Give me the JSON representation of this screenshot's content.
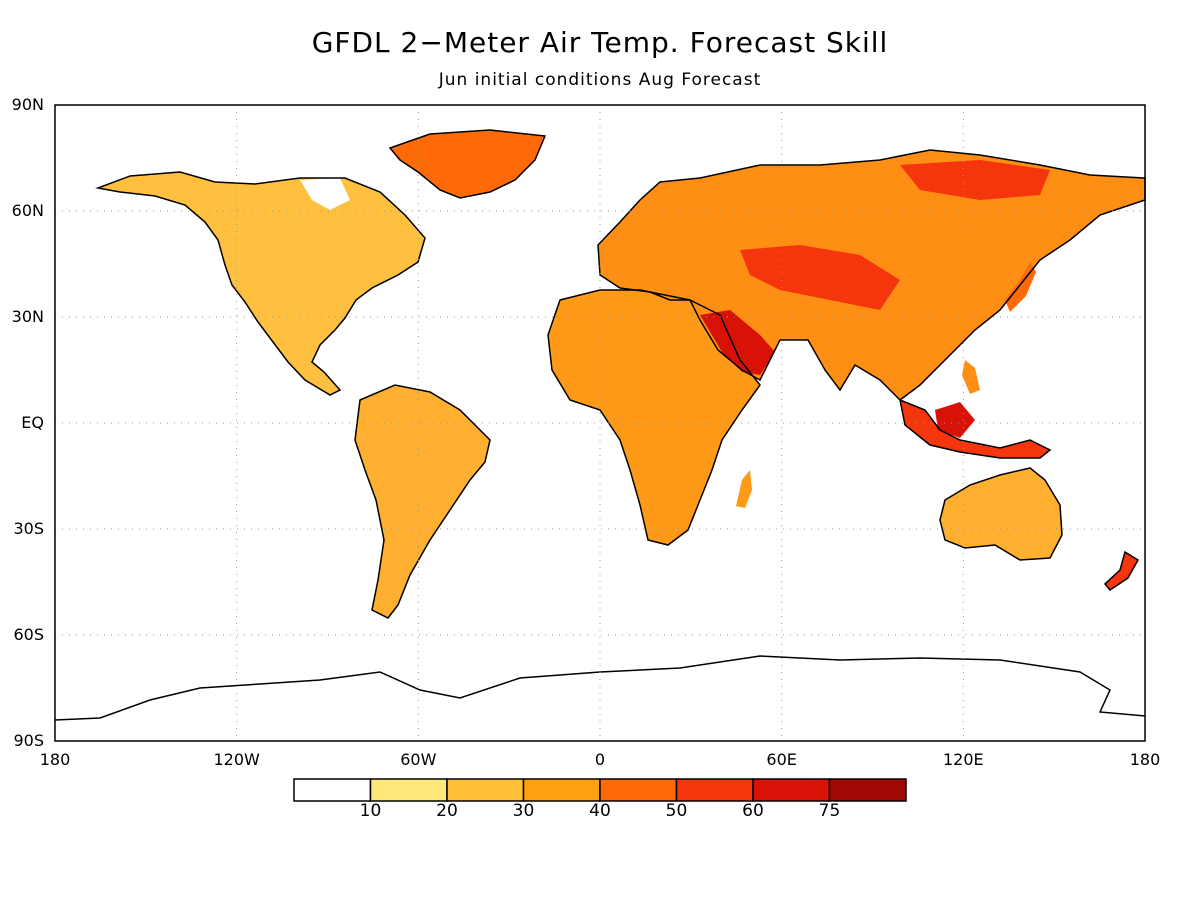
{
  "title": "GFDL 2−Meter Air Temp. Forecast Skill",
  "subtitle": "Jun initial conditions   Aug Forecast",
  "lat_labels": [
    "90N",
    "60N",
    "30N",
    "EQ",
    "30S",
    "60S",
    "90S"
  ],
  "lon_labels": [
    "180",
    "120W",
    "60W",
    "0",
    "60E",
    "120E",
    "180"
  ],
  "legend": {
    "colors": [
      "#ffffff",
      "#ffe87a",
      "#ffc03a",
      "#ffa010",
      "#ff6a08",
      "#f5350c",
      "#d81206",
      "#a00804"
    ],
    "ticks": [
      "10",
      "20",
      "30",
      "40",
      "50",
      "60",
      "75"
    ]
  },
  "colors": {
    "frame": "#000000",
    "grid": "#9a9a9a",
    "coast": "#000000"
  }
}
